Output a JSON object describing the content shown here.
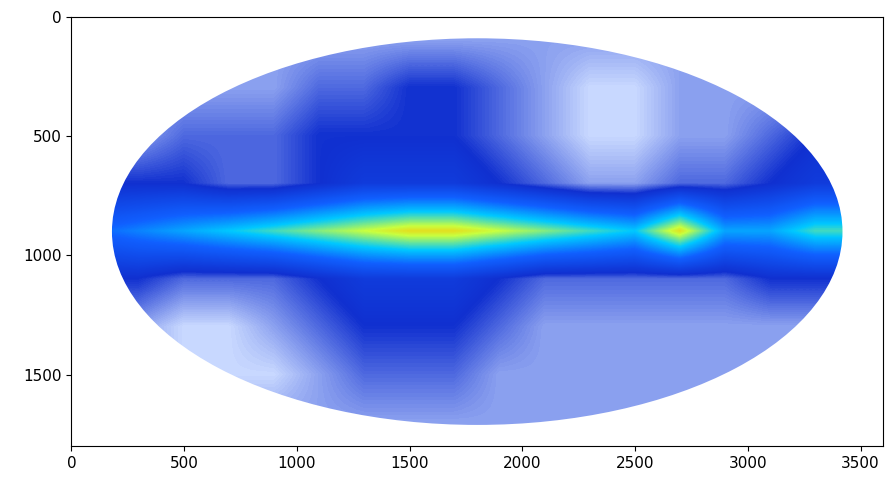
{
  "chart_data": {
    "type": "heatmap",
    "xlim": [
      0,
      3600
    ],
    "ylim": [
      1800,
      0
    ],
    "xticks": [
      0,
      500,
      1000,
      1500,
      2000,
      2500,
      3000,
      3500
    ],
    "yticks": [
      0,
      500,
      1000,
      1500
    ],
    "x_bins": [
      0,
      200,
      400,
      600,
      800,
      1000,
      1200,
      1400,
      1600,
      1800,
      2000,
      2200,
      2400,
      2600,
      2800,
      3000,
      3200,
      3400,
      3600
    ],
    "y_bins": [
      0,
      200,
      400,
      600,
      800,
      1000,
      1200,
      1400,
      1600,
      1800
    ],
    "color_range": [
      0,
      10
    ],
    "cells": [
      [
        2,
        2,
        2,
        2,
        2,
        2,
        2,
        2,
        2,
        2,
        2,
        2,
        2,
        2,
        2,
        2,
        2,
        2
      ],
      [
        2,
        2,
        2,
        2,
        2,
        2.5,
        2.5,
        3,
        3,
        2.5,
        2,
        1.5,
        1.5,
        2,
        2,
        2,
        2,
        2
      ],
      [
        2,
        2,
        2.5,
        2.5,
        2.5,
        3,
        3,
        3,
        3,
        2.5,
        2,
        1.5,
        1.5,
        2,
        2,
        2.5,
        3,
        3
      ],
      [
        3,
        3,
        3,
        2.5,
        2.5,
        3,
        3.5,
        3.5,
        3.5,
        3,
        2.5,
        2,
        2,
        2.5,
        2.5,
        3,
        3.5,
        3.5
      ],
      [
        5,
        5.5,
        6,
        6.5,
        7,
        7.5,
        8,
        8.5,
        8.5,
        8,
        7.5,
        7,
        6.5,
        8.5,
        6,
        6,
        7,
        7
      ],
      [
        3,
        3,
        2.5,
        2.5,
        2.5,
        3,
        3.5,
        3.5,
        3.5,
        3,
        2.5,
        2.5,
        2.5,
        2.5,
        2.5,
        3,
        3,
        3
      ],
      [
        2,
        2,
        1.5,
        1.5,
        2,
        2.5,
        3,
        3,
        3,
        2.5,
        2,
        2,
        2,
        2,
        2,
        2,
        2,
        2
      ],
      [
        2,
        2,
        1.5,
        1.5,
        1.5,
        2,
        2.5,
        2.5,
        2.5,
        2,
        2,
        2,
        2,
        2,
        2,
        2,
        2,
        2
      ],
      [
        2,
        2,
        2,
        2,
        2,
        2,
        2,
        2,
        2,
        2,
        2,
        2,
        2,
        2,
        2,
        2,
        2,
        2
      ]
    ]
  }
}
